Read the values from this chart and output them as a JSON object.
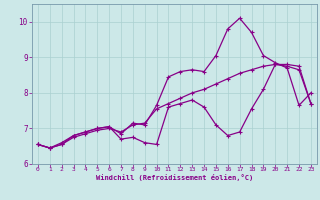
{
  "xlabel": "Windchill (Refroidissement éolien,°C)",
  "xlim": [
    -0.5,
    23.5
  ],
  "ylim": [
    6.0,
    10.5
  ],
  "xticks": [
    0,
    1,
    2,
    3,
    4,
    5,
    6,
    7,
    8,
    9,
    10,
    11,
    12,
    13,
    14,
    15,
    16,
    17,
    18,
    19,
    20,
    21,
    22,
    23
  ],
  "yticks": [
    6,
    7,
    8,
    9,
    10
  ],
  "bg_color": "#cce8e8",
  "line_color": "#880088",
  "line1_x": [
    0,
    1,
    2,
    3,
    4,
    5,
    6,
    7,
    8,
    9,
    10,
    11,
    12,
    13,
    14,
    15,
    16,
    17,
    18,
    19,
    20,
    21,
    22,
    23
  ],
  "line1_y": [
    6.55,
    6.45,
    6.55,
    6.75,
    6.85,
    6.95,
    7.0,
    6.9,
    7.1,
    7.15,
    7.55,
    7.7,
    7.85,
    8.0,
    8.1,
    8.25,
    8.4,
    8.55,
    8.65,
    8.75,
    8.8,
    8.75,
    8.65,
    7.7
  ],
  "line2_x": [
    0,
    1,
    2,
    3,
    4,
    5,
    6,
    7,
    8,
    9,
    10,
    11,
    12,
    13,
    14,
    15,
    16,
    17,
    18,
    19,
    20,
    21,
    22,
    23
  ],
  "line2_y": [
    6.55,
    6.45,
    6.6,
    6.8,
    6.9,
    7.0,
    7.05,
    6.85,
    7.15,
    7.1,
    7.65,
    8.45,
    8.6,
    8.65,
    8.6,
    9.05,
    9.8,
    10.1,
    9.7,
    9.05,
    8.85,
    8.7,
    7.65,
    8.0
  ],
  "line3_x": [
    0,
    1,
    2,
    3,
    4,
    5,
    6,
    7,
    8,
    9,
    10,
    11,
    12,
    13,
    14,
    15,
    16,
    17,
    18,
    19,
    20,
    21,
    22,
    23
  ],
  "line3_y": [
    6.55,
    6.45,
    6.55,
    6.8,
    6.9,
    7.0,
    7.05,
    6.7,
    6.75,
    6.6,
    6.55,
    7.6,
    7.7,
    7.8,
    7.6,
    7.1,
    6.8,
    6.9,
    7.55,
    8.1,
    8.8,
    8.8,
    8.75,
    7.7
  ],
  "grid_color": "#aad0d0",
  "spine_color": "#7799aa"
}
